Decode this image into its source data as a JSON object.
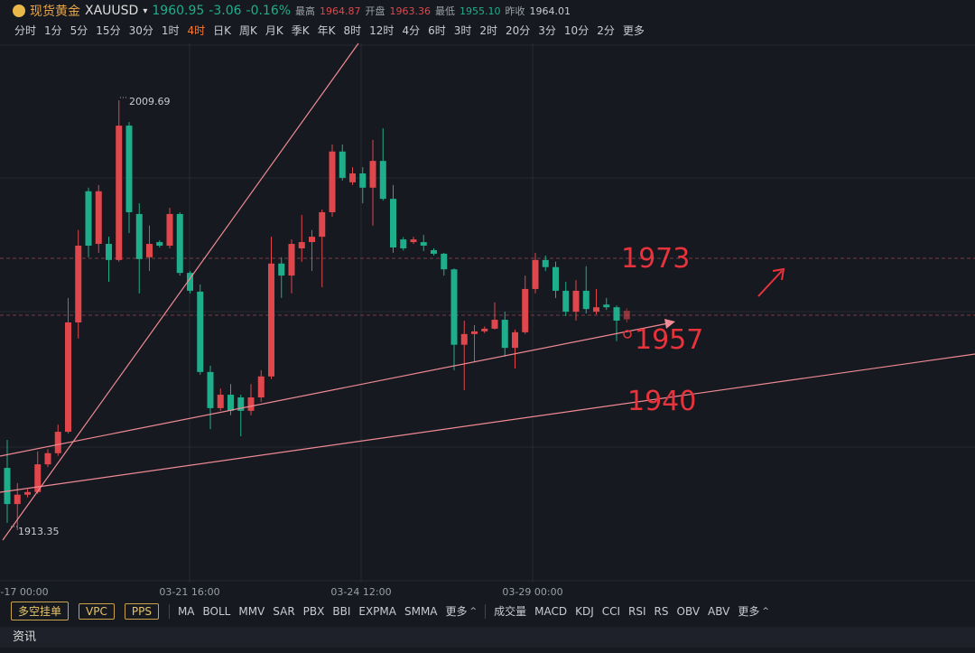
{
  "header": {
    "name": "现货黄金",
    "symbol": "XAUUSD",
    "price": "1960.95",
    "change": "-3.06",
    "change_pct": "-0.16%",
    "high_label": "最高",
    "high": "1964.87",
    "open_label": "开盘",
    "open": "1963.36",
    "low_label": "最低",
    "low": "1955.10",
    "prev_label": "昨收",
    "prev": "1964.01"
  },
  "timeframes": [
    "分时",
    "1分",
    "5分",
    "15分",
    "30分",
    "1时",
    "4时",
    "日K",
    "周K",
    "月K",
    "季K",
    "年K",
    "8时",
    "12时",
    "4分",
    "6时",
    "3时",
    "2时",
    "20分",
    "3分",
    "10分",
    "2分",
    "更多"
  ],
  "active_timeframe": 6,
  "chart_data": {
    "type": "candlestick",
    "up_color": "#e0474c",
    "down_color": "#1fae8c",
    "x_labels": [
      "-17 00:00",
      "03-21 16:00",
      "03-24 12:00",
      "03-29 00:00"
    ],
    "max_label": 2009.69,
    "min_label": 1913.35,
    "open": [
      1927.3,
      1919.2,
      1921.3,
      1921.9,
      1928.1,
      1930.6,
      1935.4,
      1959.9,
      1989.3,
      1977.5,
      1977.5,
      1973.9,
      2004.0,
      1984.2,
      1974.5,
      1977.9,
      1977.1,
      1984.2,
      1971.0,
      1966.8,
      1948.8,
      1940.7,
      1943.7,
      1943.1,
      1940.1,
      1943.1,
      1947.8,
      1973.1,
      1970.4,
      1976.5,
      1977.9,
      1979.1,
      1984.6,
      1998.2,
      1991.3,
      1993.3,
      1990.1,
      1996.1,
      1987.6,
      1978.5,
      1977.9,
      1977.9,
      1976.1,
      1975.3,
      1971.8,
      1954.9,
      1957.3,
      1957.9,
      1958.5,
      1960.5,
      1954.2,
      1957.7,
      1967.4,
      1973.9,
      1972.3,
      1967.0,
      1962.3,
      1967.0,
      1962.3,
      1963.9,
      1963.3,
      1960.6
    ],
    "close": [
      1919.2,
      1921.3,
      1921.9,
      1928.1,
      1930.6,
      1935.4,
      1959.9,
      1977.1,
      1977.1,
      1989.3,
      1973.9,
      2004.0,
      1984.6,
      1974.1,
      1977.5,
      1977.1,
      1984.2,
      1971.0,
      1967.0,
      1948.8,
      1940.7,
      1943.7,
      1940.1,
      1940.1,
      1943.1,
      1947.8,
      1973.1,
      1970.4,
      1977.5,
      1977.9,
      1979.1,
      1984.6,
      1998.2,
      1992.3,
      1993.3,
      1990.1,
      1996.1,
      1987.6,
      1976.7,
      1976.5,
      1978.5,
      1977.1,
      1975.3,
      1971.8,
      1954.9,
      1957.3,
      1957.9,
      1958.5,
      1960.5,
      1954.2,
      1957.7,
      1967.4,
      1973.9,
      1972.3,
      1967.0,
      1962.3,
      1967.0,
      1962.9,
      1963.3,
      1963.3,
      1960.3,
      1962.5
    ],
    "high": [
      1933.6,
      1923.9,
      1922.5,
      1931.0,
      1931.5,
      1937.0,
      1965.4,
      1980.6,
      1990.1,
      1990.7,
      1979.1,
      2009.69,
      2004.8,
      1986.6,
      1981.6,
      1978.3,
      1985.6,
      1984.6,
      1971.4,
      1968.4,
      1950.2,
      1945.1,
      1946.1,
      1943.7,
      1946.1,
      1949.2,
      1979.1,
      1974.5,
      1978.5,
      1984.0,
      1980.6,
      1985.2,
      1999.8,
      1999.8,
      1994.7,
      1994.7,
      2000.8,
      2003.4,
      1990.7,
      1979.0,
      1979.1,
      1979.5,
      1976.5,
      1975.5,
      1972.0,
      1960.3,
      1959.3,
      1959.0,
      1964.4,
      1962.3,
      1958.3,
      1970.4,
      1975.5,
      1974.9,
      1973.5,
      1969.0,
      1969.4,
      1972.5,
      1967.4,
      1965.4,
      1963.7,
      1963.1
    ],
    "low": [
      1915.0,
      1913.35,
      1920.7,
      1921.5,
      1927.5,
      1930.0,
      1935.0,
      1956.3,
      1974.5,
      1975.5,
      1969.0,
      1973.5,
      1979.9,
      1966.4,
      1971.4,
      1976.7,
      1976.5,
      1970.4,
      1966.4,
      1948.2,
      1936.0,
      1940.1,
      1939.1,
      1934.4,
      1939.1,
      1942.1,
      1947.2,
      1965.4,
      1966.4,
      1973.5,
      1971.4,
      1967.8,
      1983.6,
      1991.7,
      1990.7,
      1986.6,
      1981.6,
      1987.2,
      1975.5,
      1976.0,
      1977.5,
      1975.9,
      1974.9,
      1970.4,
      1949.2,
      1944.7,
      1951.2,
      1957.5,
      1958.3,
      1952.2,
      1949.6,
      1957.3,
      1966.4,
      1971.4,
      1965.4,
      1961.3,
      1960.3,
      1961.9,
      1961.7,
      1962.7,
      1955.7,
      1959.9
    ],
    "annotations": [
      "1973",
      "1957",
      "1940"
    ]
  },
  "toolbar": {
    "buttons": [
      "多空挂单",
      "VPC",
      "PPS"
    ],
    "main_indicators": [
      "MA",
      "BOLL",
      "MMV",
      "SAR",
      "PBX",
      "BBI",
      "EXPMA",
      "SMMA",
      "更多"
    ],
    "sub_indicators": [
      "成交量",
      "MACD",
      "KDJ",
      "CCI",
      "RSI",
      "RS",
      "OBV",
      "ABV",
      "更多"
    ]
  },
  "news": "资讯"
}
